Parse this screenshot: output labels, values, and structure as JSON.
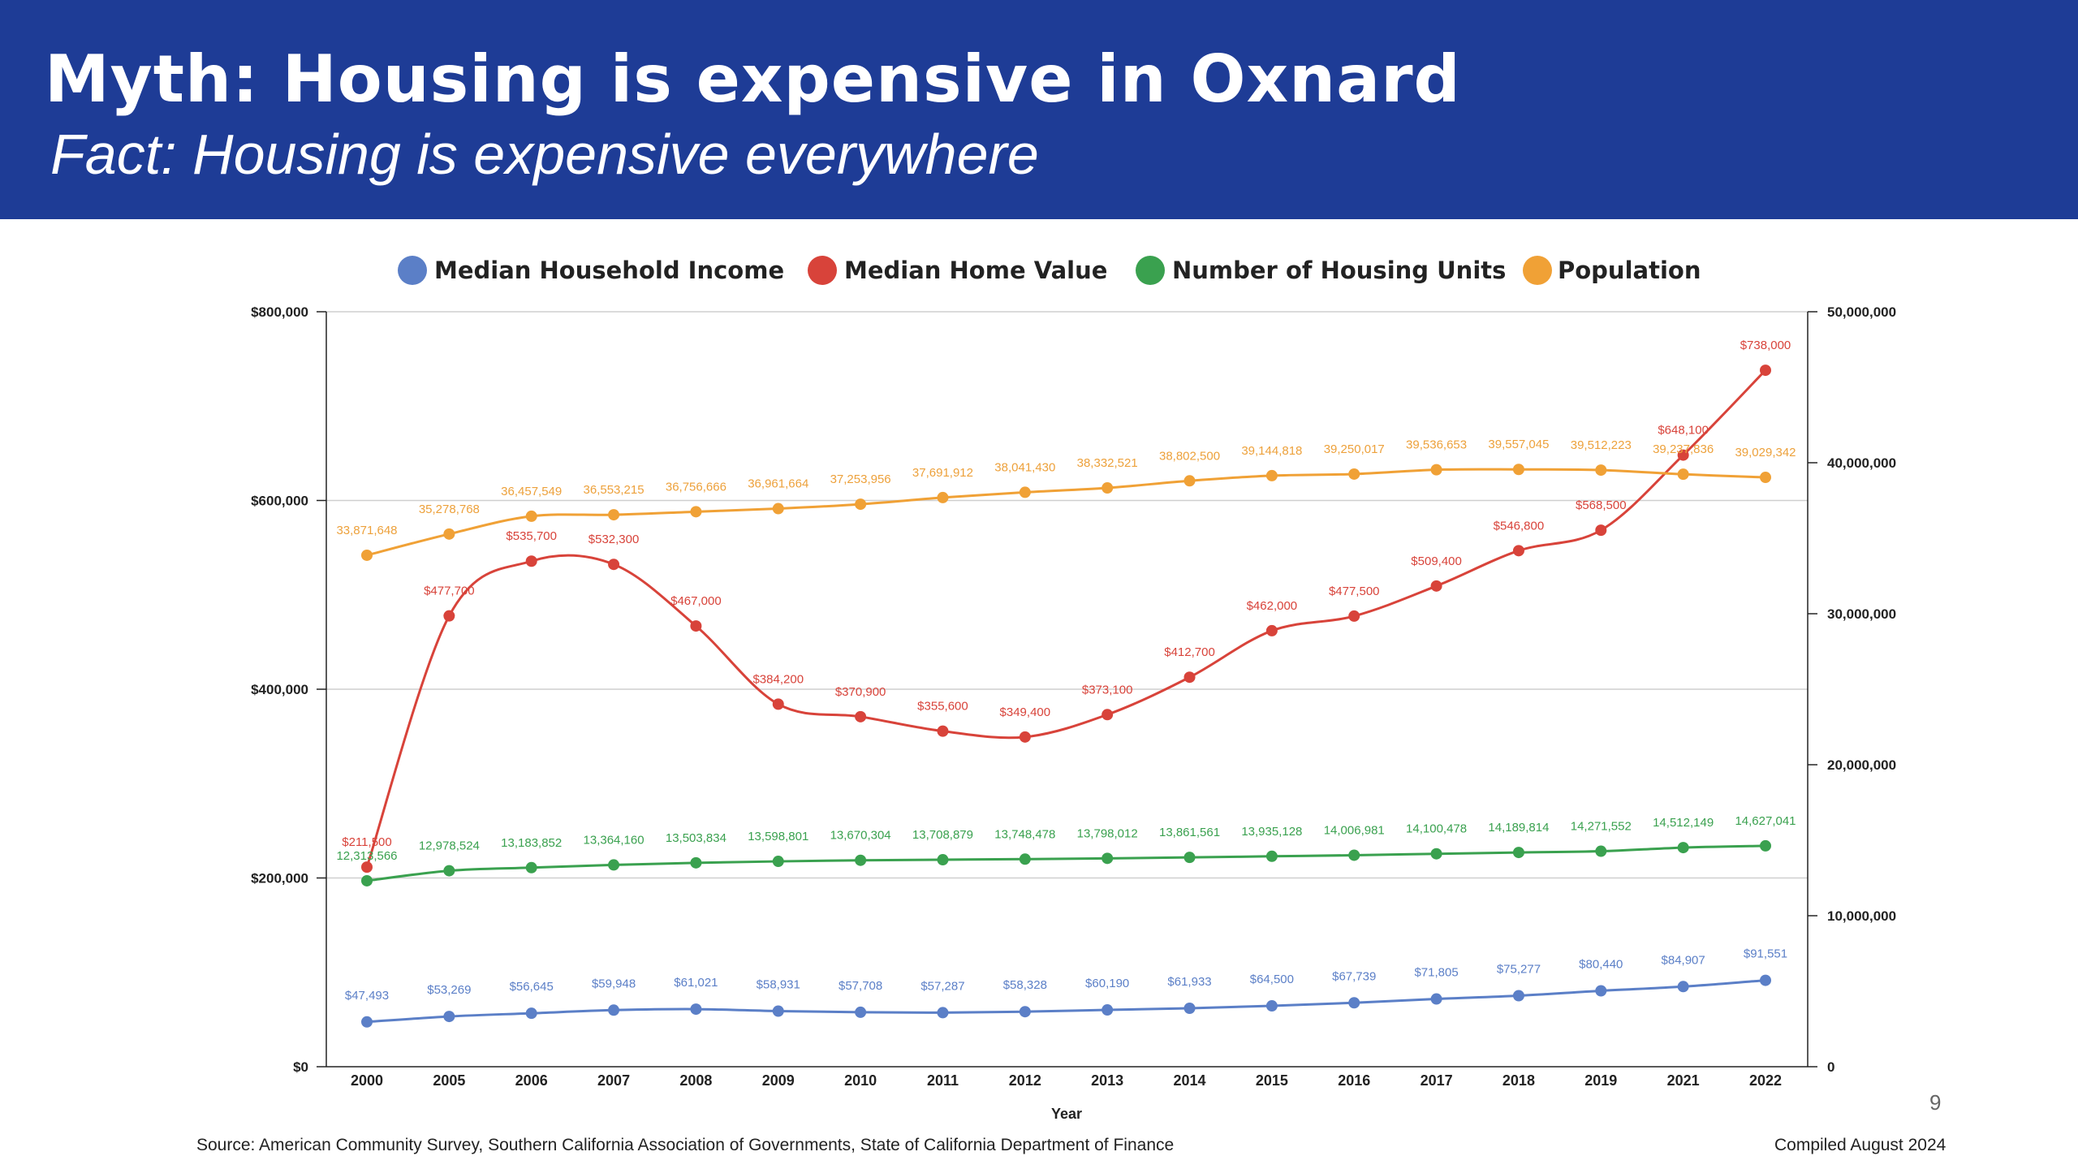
{
  "header": {
    "title": "Myth: Housing is expensive in Oxnard",
    "subtitle": "Fact: Housing is expensive everywhere"
  },
  "footer": {
    "source": "Source: American Community Survey, Southern California Association of Governments, State of California Department of Finance",
    "compiled": "Compiled August 2024",
    "page_number": "9"
  },
  "chart_data": {
    "type": "line",
    "xlabel": "Year",
    "x": [
      "2000",
      "2005",
      "2006",
      "2007",
      "2008",
      "2009",
      "2010",
      "2011",
      "2012",
      "2013",
      "2014",
      "2015",
      "2016",
      "2017",
      "2018",
      "2019",
      "2021",
      "2022"
    ],
    "y_left": {
      "ylim": [
        0,
        800000
      ],
      "ticks": [
        0,
        200000,
        400000,
        600000,
        800000
      ],
      "tick_labels": [
        "$0",
        "$200,000",
        "$400,000",
        "$600,000",
        "$800,000"
      ]
    },
    "y_right": {
      "ylim": [
        0,
        50000000
      ],
      "ticks": [
        0,
        10000000,
        20000000,
        30000000,
        40000000,
        50000000
      ],
      "tick_labels": [
        "0",
        "10,000,000",
        "20,000,000",
        "30,000,000",
        "40,000,000",
        "50,000,000"
      ]
    },
    "grid": true,
    "legend_position": "top",
    "series": [
      {
        "name": "Median Household Income",
        "axis": "left",
        "color": "#5b7fc7",
        "values": [
          47493,
          53269,
          56645,
          59948,
          61021,
          58931,
          57708,
          57287,
          58328,
          60190,
          61933,
          64500,
          67739,
          71805,
          75277,
          80440,
          84907,
          91551
        ],
        "labels": [
          "$47,493",
          "$53,269",
          "$56,645",
          "$59,948",
          "$61,021",
          "$58,931",
          "$57,708",
          "$57,287",
          "$58,328",
          "$60,190",
          "$61,933",
          "$64,500",
          "$67,739",
          "$71,805",
          "$75,277",
          "$80,440",
          "$84,907",
          "$91,551"
        ]
      },
      {
        "name": "Median Home Value",
        "axis": "left",
        "color": "#d8433a",
        "values": [
          211500,
          477700,
          535700,
          532300,
          467000,
          384200,
          370900,
          355600,
          349400,
          373100,
          412700,
          462000,
          477500,
          509400,
          546800,
          568500,
          648100,
          738000
        ],
        "labels": [
          "$211,500",
          "$477,700",
          "$535,700",
          "$532,300",
          "$467,000",
          "$384,200",
          "$370,900",
          "$355,600",
          "$349,400",
          "$373,100",
          "$412,700",
          "$462,000",
          "$477,500",
          "$509,400",
          "$546,800",
          "$568,500",
          "$648,100",
          "$738,000"
        ]
      },
      {
        "name": "Number of Housing Units",
        "axis": "right",
        "color": "#3aa14f",
        "values": [
          12313566,
          12978524,
          13183852,
          13364160,
          13503834,
          13598801,
          13670304,
          13708879,
          13748478,
          13798012,
          13861561,
          13935128,
          14006981,
          14100478,
          14189814,
          14271552,
          14512149,
          14627041
        ],
        "labels": [
          "12,313,566",
          "12,978,524",
          "13,183,852",
          "13,364,160",
          "13,503,834",
          "13,598,801",
          "13,670,304",
          "13,708,879",
          "13,748,478",
          "13,798,012",
          "13,861,561",
          "13,935,128",
          "14,006,981",
          "14,100,478",
          "14,189,814",
          "14,271,552",
          "14,512,149",
          "14,627,041"
        ]
      },
      {
        "name": "Population",
        "axis": "right",
        "color": "#f0a136",
        "values": [
          33871648,
          35278768,
          36457549,
          36553215,
          36756666,
          36961664,
          37253956,
          37691912,
          38041430,
          38332521,
          38802500,
          39144818,
          39250017,
          39536653,
          39557045,
          39512223,
          39237836,
          39029342
        ],
        "labels": [
          "33,871,648",
          "35,278,768",
          "36,457,549",
          "36,553,215",
          "36,756,666",
          "36,961,664",
          "37,253,956",
          "37,691,912",
          "38,041,430",
          "38,332,521",
          "38,802,500",
          "39,144,818",
          "39,250,017",
          "39,536,653",
          "39,557,045",
          "39,512,223",
          "39,237,836",
          "39,029,342"
        ]
      }
    ]
  }
}
